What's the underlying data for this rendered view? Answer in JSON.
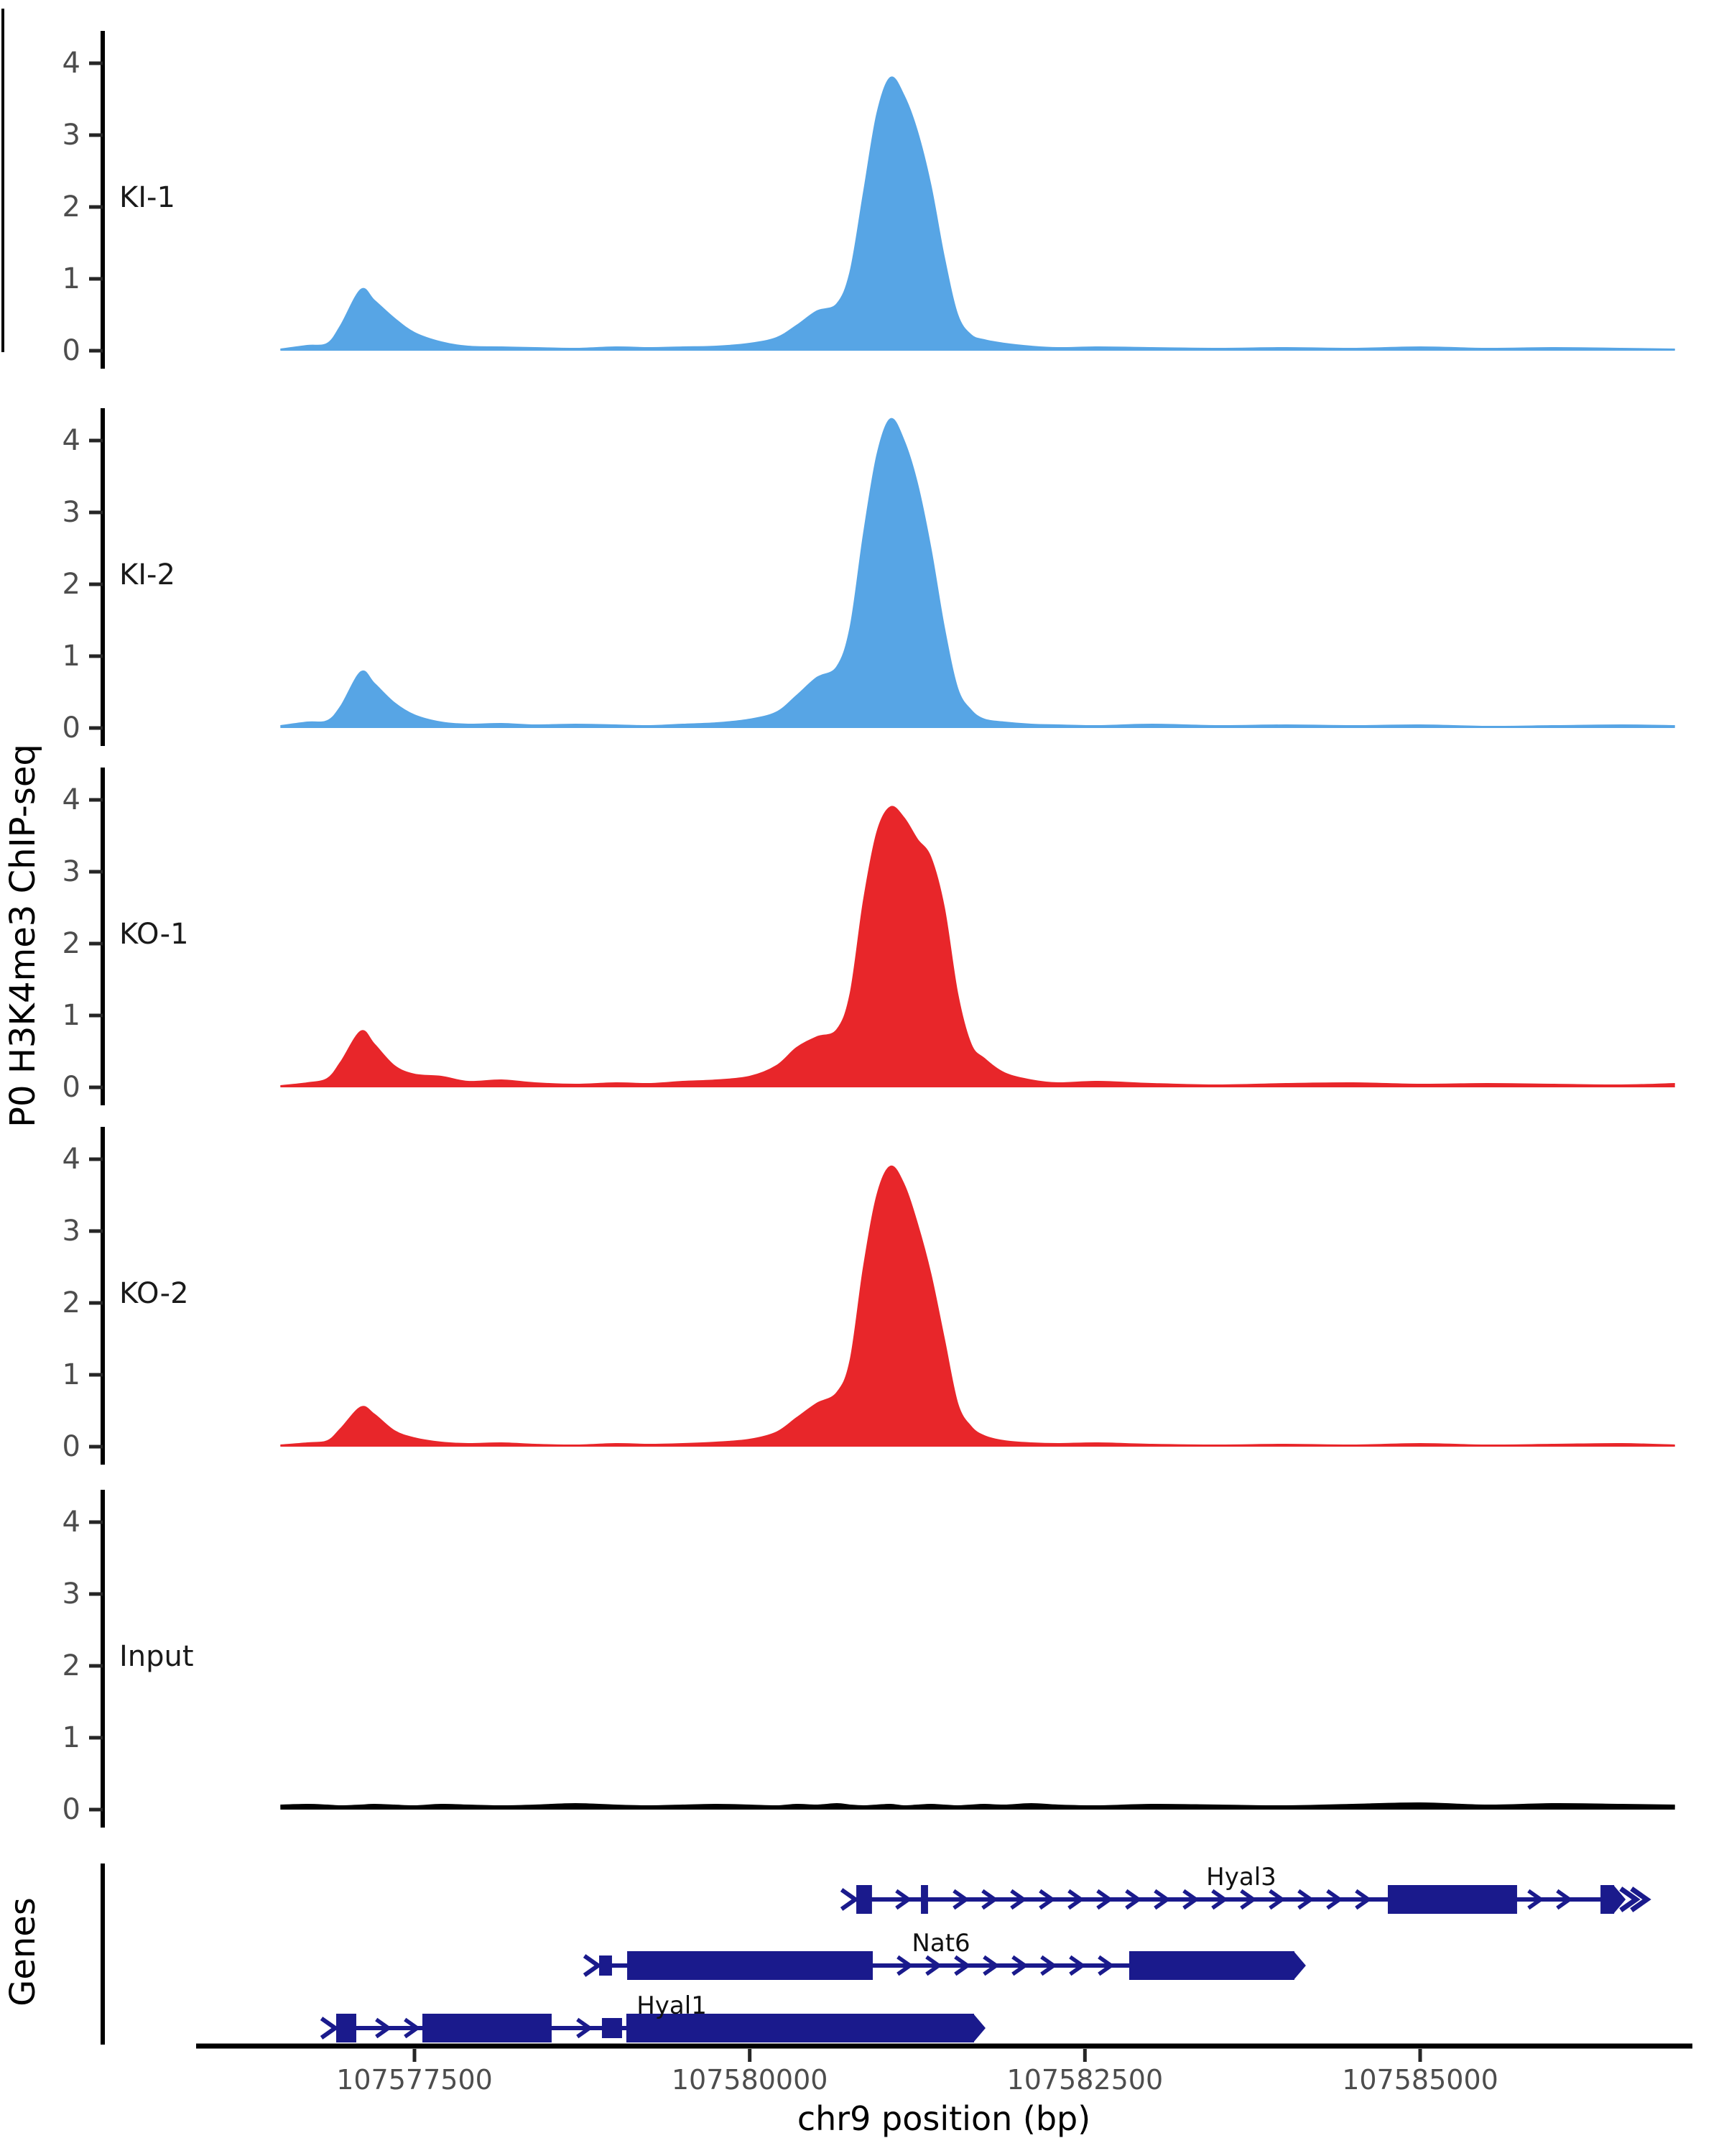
{
  "figure": {
    "y_axis_label": "P0 H3K4me3 ChIP-seq",
    "genes_axis_label": "Genes",
    "x_axis_label": "chr9 position (bp)",
    "colors": {
      "ki_fill": "#57a5e5",
      "ko_fill": "#e8262a",
      "input_fill": "#000000",
      "gene_model": "#1a1a8c",
      "axis_line": "#000000",
      "tick_text": "#4d4d4d",
      "label_text": "#1a1a1a"
    }
  },
  "chart_data": {
    "type": "area",
    "title": "",
    "xlabel": "chr9 position (bp)",
    "ylabel": "P0 H3K4me3 ChIP-seq",
    "panel_layout": "stacked-tracks",
    "grid": false,
    "x_range": [
      107575880,
      107587030
    ],
    "ylim": [
      0,
      4.4
    ],
    "y_ticks": [
      0,
      1,
      2,
      3,
      4
    ],
    "x_ticks": [
      {
        "pos": 107577500,
        "label": "107577500"
      },
      {
        "pos": 107580000,
        "label": "107580000"
      },
      {
        "pos": 107582500,
        "label": "107582500"
      },
      {
        "pos": 107585000,
        "label": "107585000"
      }
    ],
    "x": [
      107576500,
      107576700,
      107576850,
      107576950,
      107577100,
      107577200,
      107577350,
      107577500,
      107577700,
      107577900,
      107578150,
      107578400,
      107578700,
      107579000,
      107579250,
      107579500,
      107579750,
      107580000,
      107580200,
      107580350,
      107580500,
      107580650,
      107580750,
      107580850,
      107580950,
      107581050,
      107581150,
      107581250,
      107581350,
      107581450,
      107581550,
      107581650,
      107581750,
      107581900,
      107582100,
      107582300,
      107582600,
      107583000,
      107583500,
      107584000,
      107584500,
      107585000,
      107585500,
      107586000,
      107586500,
      107586900
    ],
    "tracks": [
      {
        "label": "KI-1",
        "color": "#57a5e5",
        "values": [
          0.02,
          0.07,
          0.1,
          0.35,
          0.85,
          0.7,
          0.45,
          0.25,
          0.12,
          0.06,
          0.05,
          0.04,
          0.03,
          0.05,
          0.04,
          0.05,
          0.06,
          0.1,
          0.18,
          0.35,
          0.55,
          0.65,
          1.1,
          2.2,
          3.3,
          3.8,
          3.55,
          3.05,
          2.3,
          1.3,
          0.5,
          0.22,
          0.15,
          0.1,
          0.06,
          0.04,
          0.05,
          0.04,
          0.03,
          0.04,
          0.03,
          0.05,
          0.03,
          0.04,
          0.03,
          0.02
        ]
      },
      {
        "label": "KI-2",
        "color": "#57a5e5",
        "values": [
          0.03,
          0.08,
          0.1,
          0.3,
          0.78,
          0.62,
          0.35,
          0.18,
          0.08,
          0.05,
          0.06,
          0.04,
          0.05,
          0.04,
          0.03,
          0.05,
          0.07,
          0.12,
          0.22,
          0.45,
          0.7,
          0.85,
          1.4,
          2.7,
          3.8,
          4.3,
          4.0,
          3.4,
          2.5,
          1.4,
          0.55,
          0.25,
          0.12,
          0.08,
          0.05,
          0.04,
          0.03,
          0.05,
          0.03,
          0.04,
          0.03,
          0.04,
          0.02,
          0.03,
          0.04,
          0.03
        ]
      },
      {
        "label": "KO-1",
        "color": "#e8262a",
        "values": [
          0.02,
          0.06,
          0.12,
          0.35,
          0.78,
          0.6,
          0.3,
          0.18,
          0.15,
          0.08,
          0.1,
          0.06,
          0.04,
          0.06,
          0.05,
          0.08,
          0.1,
          0.15,
          0.3,
          0.55,
          0.7,
          0.8,
          1.3,
          2.6,
          3.55,
          3.9,
          3.75,
          3.45,
          3.2,
          2.5,
          1.3,
          0.6,
          0.4,
          0.2,
          0.1,
          0.06,
          0.08,
          0.05,
          0.03,
          0.05,
          0.06,
          0.04,
          0.05,
          0.04,
          0.03,
          0.05
        ]
      },
      {
        "label": "KO-2",
        "color": "#e8262a",
        "values": [
          0.02,
          0.05,
          0.08,
          0.25,
          0.55,
          0.45,
          0.22,
          0.12,
          0.06,
          0.04,
          0.05,
          0.03,
          0.02,
          0.04,
          0.03,
          0.04,
          0.06,
          0.1,
          0.2,
          0.4,
          0.6,
          0.75,
          1.2,
          2.5,
          3.5,
          3.9,
          3.65,
          3.1,
          2.4,
          1.5,
          0.6,
          0.28,
          0.15,
          0.08,
          0.05,
          0.04,
          0.05,
          0.03,
          0.02,
          0.03,
          0.02,
          0.04,
          0.02,
          0.03,
          0.04,
          0.02
        ]
      },
      {
        "label": "Input",
        "color": "#000000",
        "values": [
          0.05,
          0.06,
          0.05,
          0.04,
          0.05,
          0.06,
          0.05,
          0.04,
          0.06,
          0.05,
          0.04,
          0.05,
          0.07,
          0.05,
          0.04,
          0.05,
          0.06,
          0.05,
          0.04,
          0.06,
          0.05,
          0.07,
          0.05,
          0.04,
          0.05,
          0.06,
          0.04,
          0.05,
          0.06,
          0.05,
          0.04,
          0.05,
          0.06,
          0.05,
          0.07,
          0.05,
          0.04,
          0.06,
          0.05,
          0.04,
          0.06,
          0.08,
          0.05,
          0.07,
          0.06,
          0.05
        ]
      }
    ],
    "genes": [
      {
        "name": "Hyal3",
        "strand": "+",
        "row": 0,
        "label_bp": 107583666,
        "end_style": "double_chevron",
        "exons": [
          {
            "start": 107580795,
            "end": 107580912,
            "height": "tall"
          },
          {
            "start": 107581277,
            "end": 107581330,
            "height": "tall"
          },
          {
            "start": 107584759,
            "end": 107585723,
            "height": "tall"
          },
          {
            "start": 107586345,
            "end": 107586447,
            "height": "tall"
          }
        ]
      },
      {
        "name": "Nat6",
        "strand": "+",
        "row": 1,
        "label_bp": 107581427,
        "end_style": "point",
        "exons": [
          {
            "start": 107578877,
            "end": 107578973,
            "height": "short"
          },
          {
            "start": 107579086,
            "end": 107580918,
            "height": "tall"
          },
          {
            "start": 107582830,
            "end": 107584062,
            "height": "tall"
          }
        ]
      },
      {
        "name": "Hyal1",
        "strand": "+",
        "row": 2,
        "label_bp": 107579418,
        "end_style": "point",
        "exons": [
          {
            "start": 107576916,
            "end": 107577066,
            "height": "tall"
          },
          {
            "start": 107577559,
            "end": 107578523,
            "height": "tall"
          },
          {
            "start": 107578898,
            "end": 107579048,
            "height": "short"
          },
          {
            "start": 107579080,
            "end": 107581673,
            "height": "tall"
          }
        ]
      }
    ]
  }
}
